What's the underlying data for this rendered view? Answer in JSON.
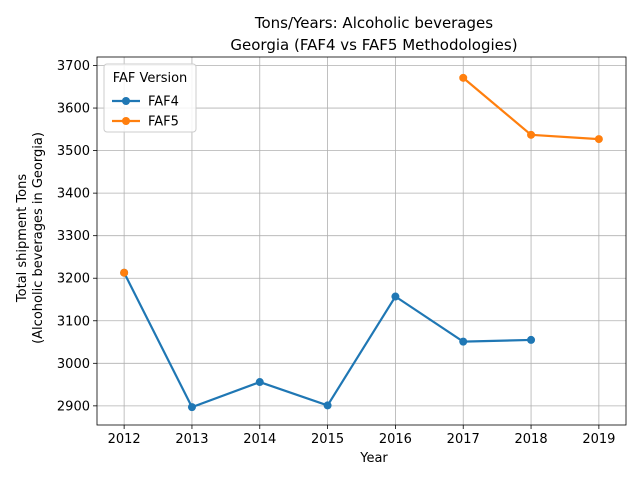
{
  "chart_data": {
    "type": "line",
    "title_line1": "Tons/Years: Alcoholic beverages",
    "title_line2": "Georgia (FAF4 vs FAF5 Methodologies)",
    "xlabel": "Year",
    "ylabel_line1": "Total shipment Tons",
    "ylabel_line2": "(Alcoholic beverages in Georgia)",
    "xlim": [
      2011.6,
      2019.4
    ],
    "ylim": [
      2855,
      3720
    ],
    "xticks": [
      2012,
      2013,
      2014,
      2015,
      2016,
      2017,
      2018,
      2019
    ],
    "yticks": [
      2900,
      3000,
      3100,
      3200,
      3300,
      3400,
      3500,
      3600,
      3700
    ],
    "grid": true,
    "legend": {
      "title": "FAF Version",
      "placement": "top-left"
    },
    "series": [
      {
        "name": "FAF4",
        "color": "#1f77b4",
        "points": [
          {
            "x": 2012,
            "y": 3213
          },
          {
            "x": 2013,
            "y": 2897
          },
          {
            "x": 2014,
            "y": 2956
          },
          {
            "x": 2015,
            "y": 2901
          },
          {
            "x": 2016,
            "y": 3157
          },
          {
            "x": 2017,
            "y": 3051
          },
          {
            "x": 2018,
            "y": 3055
          }
        ]
      },
      {
        "name": "FAF5",
        "color": "#ff7f0e",
        "points": [
          {
            "x": 2012,
            "y": 3213
          },
          {
            "x": 2017,
            "y": 3671
          },
          {
            "x": 2018,
            "y": 3537
          },
          {
            "x": 2019,
            "y": 3527
          }
        ],
        "connect_from_index": 1
      }
    ]
  }
}
